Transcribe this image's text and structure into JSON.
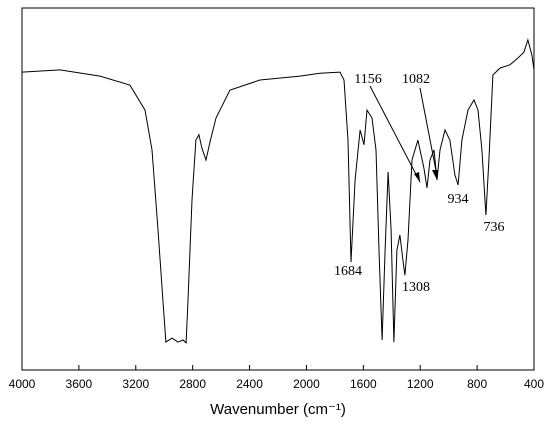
{
  "chart_data": {
    "type": "line",
    "xlabel": "Wavenumber (cm⁻¹)",
    "xlim": [
      4000,
      400
    ],
    "xticks": [
      4000,
      3600,
      3200,
      2800,
      2400,
      2000,
      1600,
      1200,
      800,
      400
    ],
    "ylim": [
      0,
      100
    ],
    "series": [
      {
        "color": "#000000",
        "x": [
          4000,
          3733,
          3452,
          3241,
          3135,
          3086,
          3044,
          3009,
          2988,
          2945,
          2903,
          2868,
          2846,
          2833,
          2805,
          2777,
          2756,
          2735,
          2706,
          2678,
          2636,
          2538,
          2327,
          2046,
          1905,
          1764,
          1736,
          1708,
          1687,
          1658,
          1623,
          1595,
          1574,
          1539,
          1511,
          1490,
          1468,
          1447,
          1426,
          1405,
          1385,
          1364,
          1343,
          1322,
          1308,
          1286,
          1258,
          1216,
          1174,
          1152,
          1131,
          1103,
          1082,
          1061,
          1026,
          991,
          956,
          934,
          907,
          864,
          822,
          794,
          766,
          738,
          717,
          689,
          639,
          569,
          513,
          471,
          443,
          415,
          400
        ],
        "values": [
          82.3,
          82.9,
          81.2,
          78.7,
          71.8,
          60.8,
          38.7,
          19.3,
          7.7,
          8.8,
          7.7,
          8.3,
          7.5,
          19.3,
          47,
          63.5,
          65,
          61.3,
          58,
          63,
          69.6,
          77.3,
          80.1,
          81.2,
          82,
          82.3,
          80.1,
          63.5,
          29.8,
          52.5,
          66.3,
          62.2,
          71.8,
          69.6,
          60.8,
          33.1,
          8.3,
          33.1,
          54.7,
          38.7,
          7.7,
          33.1,
          37.3,
          30.4,
          26.2,
          35.9,
          58,
          63.5,
          55.8,
          50.3,
          58,
          60.8,
          52.5,
          60.8,
          66.3,
          63.5,
          53.9,
          51.1,
          63.5,
          71.8,
          74.6,
          71.8,
          60.8,
          42.8,
          58,
          81.5,
          83.4,
          84.3,
          86.2,
          87.8,
          91.2,
          87,
          82.9
        ]
      }
    ],
    "annotations": [
      "1156",
      "1082",
      "1684",
      "1308",
      "934",
      "736"
    ]
  }
}
